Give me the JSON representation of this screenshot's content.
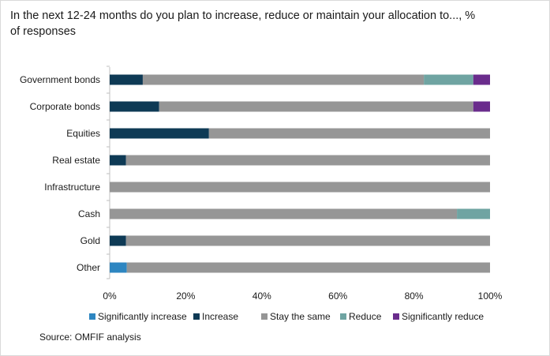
{
  "title": "In the next 12-24 months  do you plan to increase, reduce or maintain your allocation to..., % of responses",
  "source": "Source: OMFIF analysis",
  "chart_data": {
    "type": "bar",
    "orientation": "horizontal",
    "stacked": true,
    "categories": [
      "Government bonds",
      "Corporate bonds",
      "Equities",
      "Real estate",
      "Infrastructure",
      "Cash",
      "Gold",
      "Other"
    ],
    "series": [
      {
        "name": "Significantly increase",
        "color": "#2e86c1",
        "values": [
          0,
          0,
          0,
          0,
          0,
          0,
          0,
          4.5
        ]
      },
      {
        "name": "Increase",
        "color": "#0e3a55",
        "values": [
          8.7,
          13,
          26.1,
          4.3,
          0,
          0,
          4.3,
          0
        ]
      },
      {
        "name": "Stay the same",
        "color": "#969696",
        "values": [
          73.9,
          82.6,
          73.9,
          95.7,
          100,
          91.3,
          95.7,
          95.5
        ]
      },
      {
        "name": "Reduce",
        "color": "#6fa4a2",
        "values": [
          13,
          0,
          0,
          0,
          0,
          8.7,
          0,
          0
        ]
      },
      {
        "name": "Significantly reduce",
        "color": "#6a2c8c",
        "values": [
          4.4,
          4.4,
          0,
          0,
          0,
          0,
          0,
          0
        ]
      }
    ],
    "xlim": [
      0,
      100
    ],
    "xticks": [
      0,
      20,
      40,
      60,
      80,
      100
    ],
    "xtick_labels": [
      "0%",
      "20%",
      "40%",
      "60%",
      "80%",
      "100%"
    ],
    "grid": false,
    "legend_position": "bottom"
  }
}
